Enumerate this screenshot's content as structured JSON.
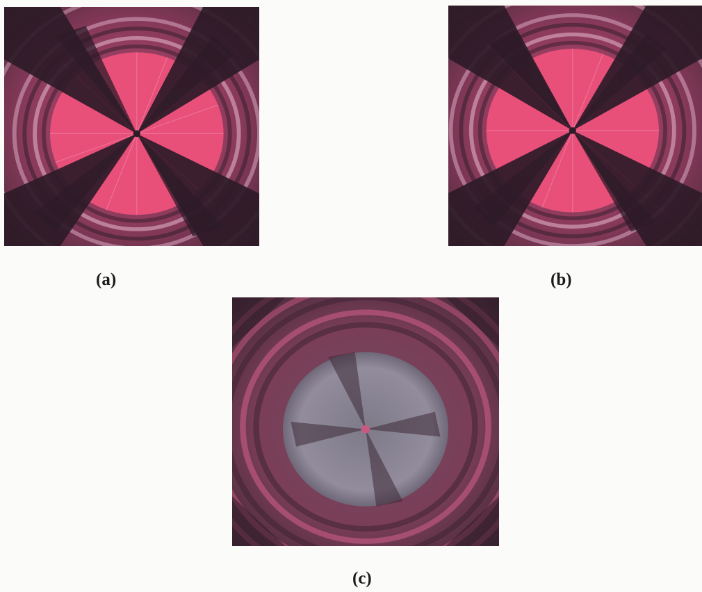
{
  "figure": {
    "panels": [
      {
        "caption": "(a)",
        "image": "polarized-optical-micrograph-maltese-cross-pink"
      },
      {
        "caption": "(b)",
        "image": "polarized-optical-micrograph-maltese-cross-pink-rotated"
      },
      {
        "caption": "(c)",
        "image": "polarized-optical-micrograph-spherulite-grey-core"
      }
    ]
  },
  "colors": {
    "background": "#fbfbf9",
    "pink_birefringence": "#e8507a",
    "dark_extinction": "#3a2130",
    "grey_core": "#8f8a98",
    "caption_text": "#1a1a1a"
  }
}
